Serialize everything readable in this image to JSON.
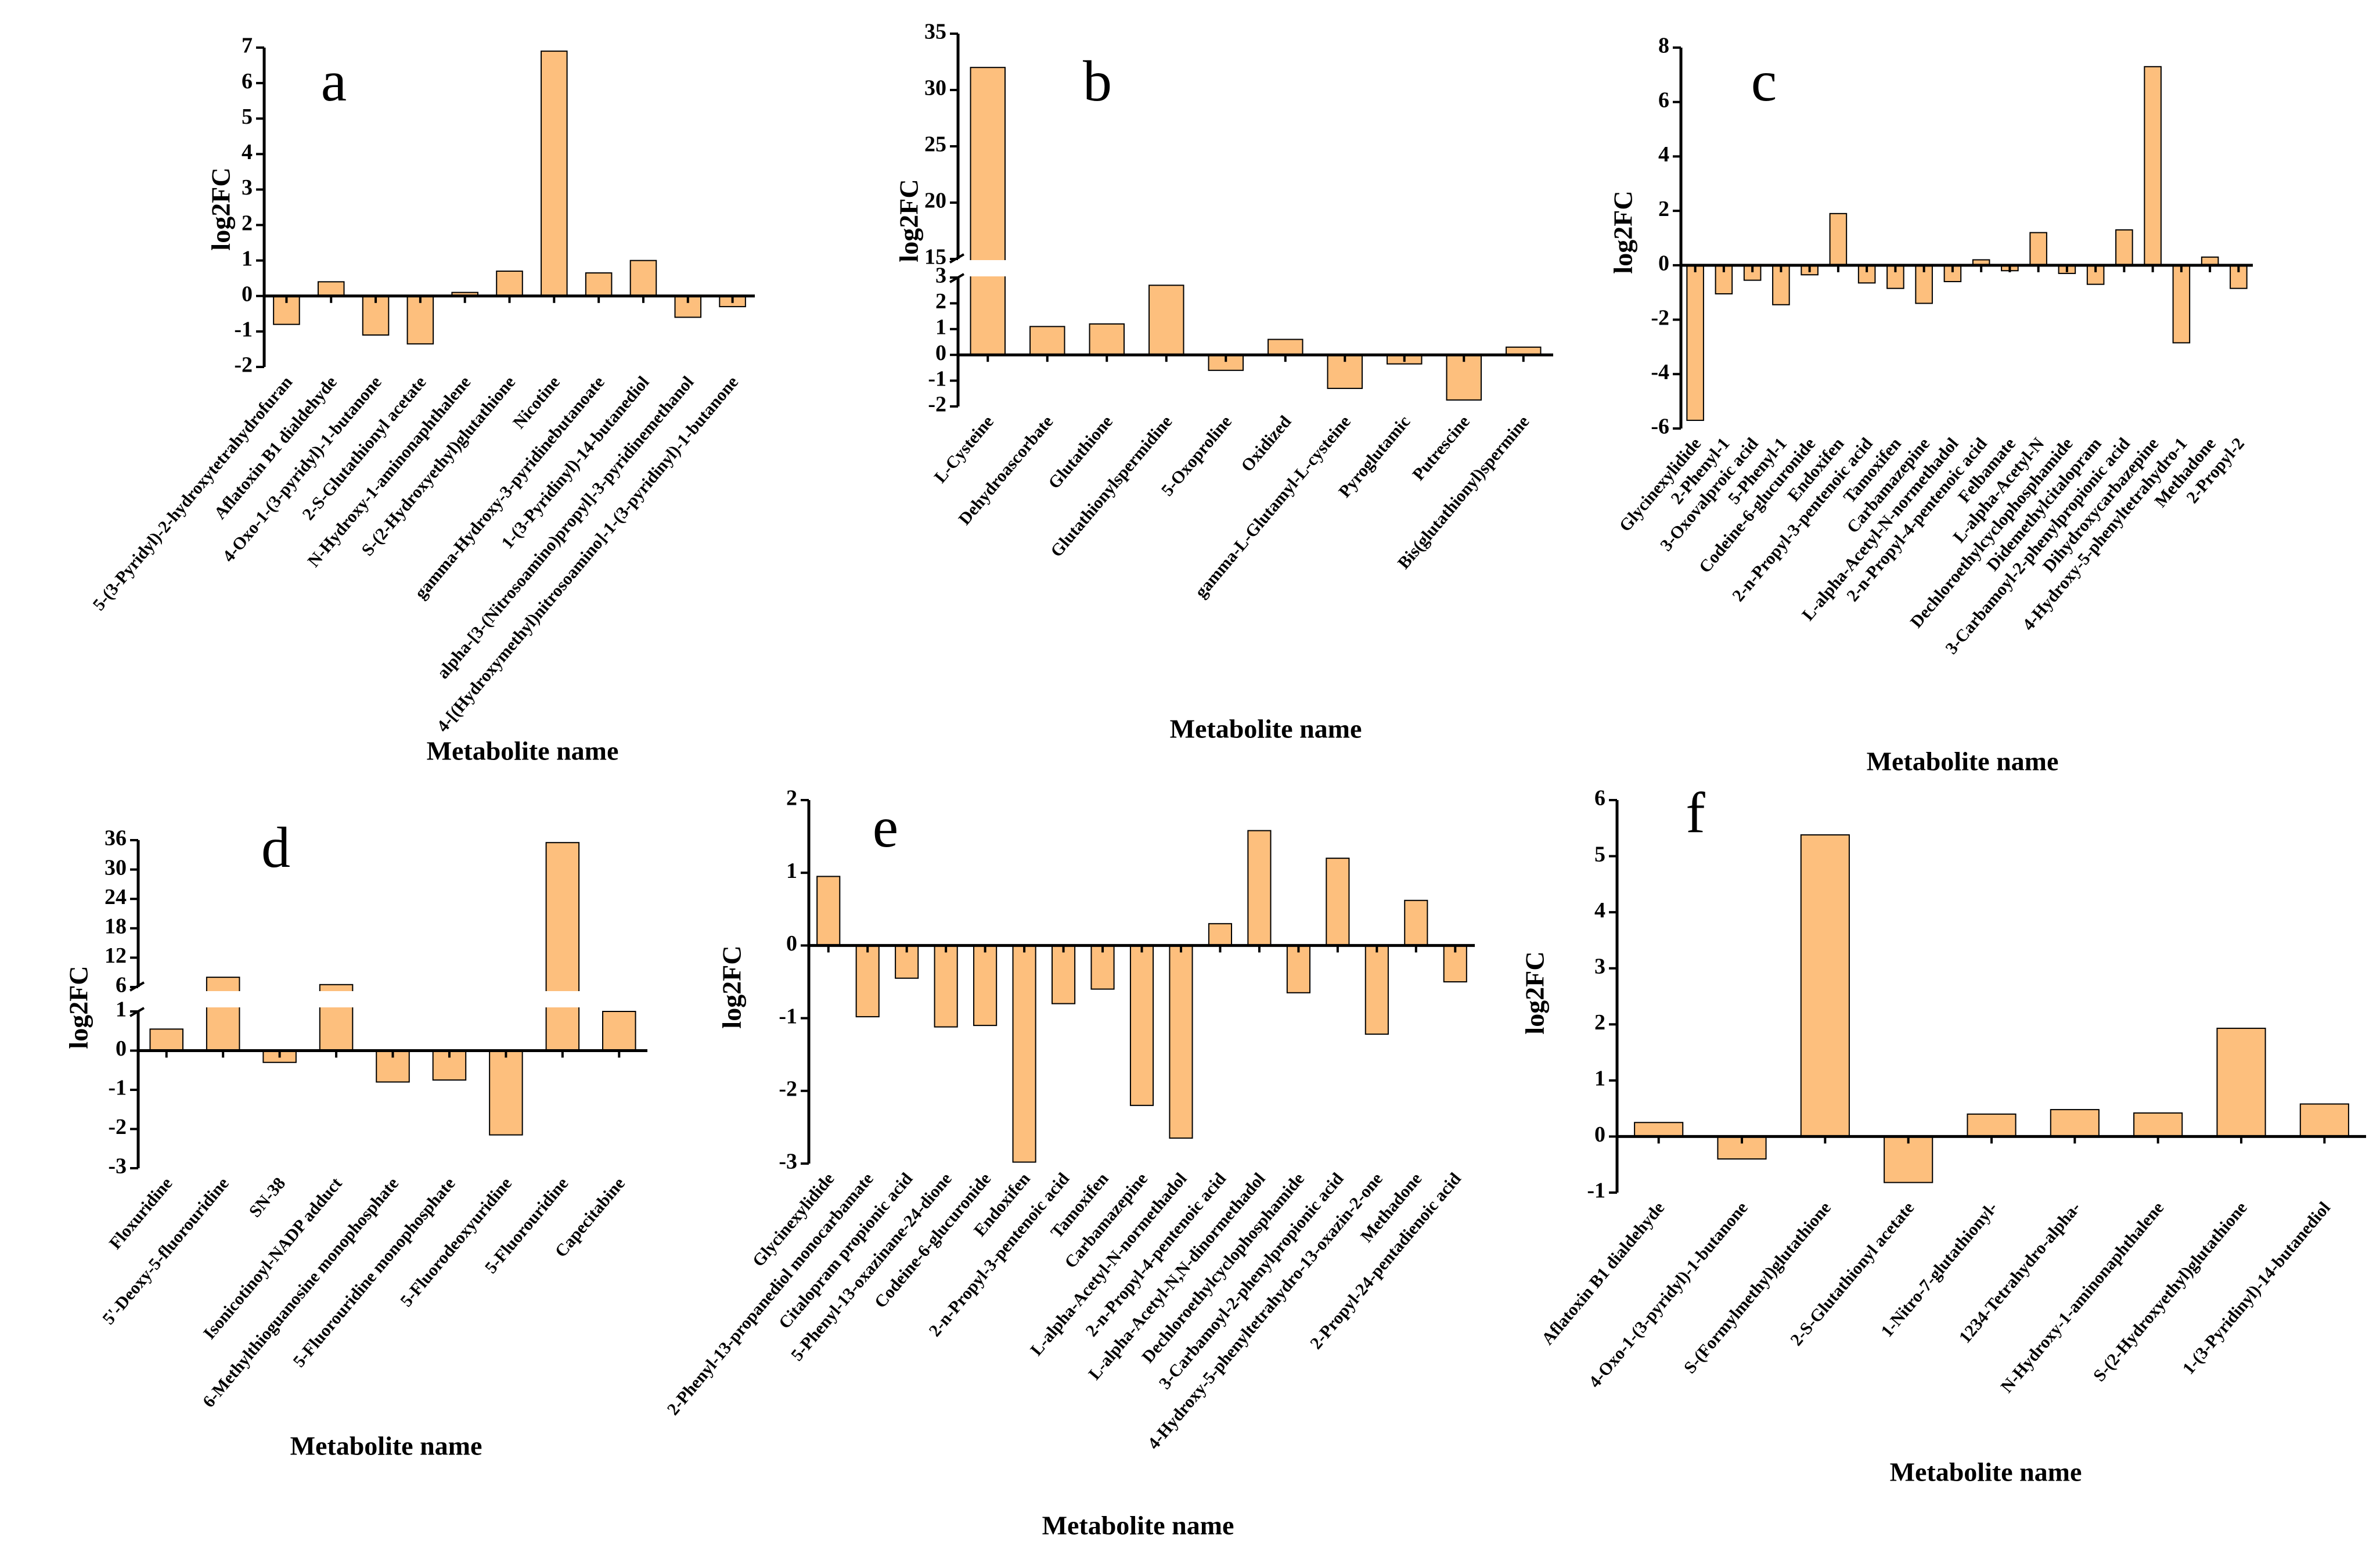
{
  "style": {
    "bar_fill": "#FDBF7D",
    "bar_stroke": "#000000",
    "axis_color": "#000000",
    "background": "#FFFFFF"
  },
  "chart_data": [
    {
      "type": "bar",
      "panel": "a",
      "ylabel": "log2FC",
      "xlabel": "Metabolite name",
      "ylim": [
        -2,
        7
      ],
      "y_ticks": [
        "-2",
        "-1",
        "0",
        "1",
        "2",
        "3",
        "4",
        "5",
        "6",
        "7"
      ],
      "categories": [
        "5-(3-Pyridyl)-2-hydroxytetrahydrofuran",
        "Aflatoxin B1 dialdehyde",
        "4-Oxo-1-(3-pyridyl)-1-butanone",
        "2-S-Glutathionyl acetate",
        "N-Hydroxy-1-aminonaphthalene",
        "S-(2-Hydroxyethyl)glutathione",
        "Nicotine",
        "gamma-Hydroxy-3-pyridinebutanoate",
        "1-(3-Pyridinyl)-14-butanediol",
        "alpha-[3-(Nitrosoamino)propyl]-3-pyridinemethanol",
        "4-[(Hydroxymethyl)nitrosoamino]-1-(3-pyridinyl)-1-butanone"
      ],
      "values": [
        -0.8,
        0.4,
        -1.1,
        -1.35,
        0.1,
        0.7,
        6.9,
        0.65,
        1.0,
        -0.6,
        -0.3
      ]
    },
    {
      "type": "bar",
      "panel": "b",
      "ylabel": "log2FC",
      "xlabel": "Metabolite name",
      "ylim": [
        -2,
        35
      ],
      "axis_break": [
        3,
        15
      ],
      "y_ticks": [
        "-2",
        "-1",
        "0",
        "1",
        "2",
        "3",
        "15",
        "20",
        "25",
        "30",
        "35"
      ],
      "categories": [
        "L-Cysteine",
        "Dehydroascorbate",
        "Glutathione",
        "Glutathionylspermidine",
        "5-Oxoproline",
        "Oxidized",
        "gamma-L-Glutamyl-L-cysteine",
        "Pyroglutamic",
        "Putrescine",
        "Bis(glutathionyl)spermine"
      ],
      "values": [
        32,
        1.1,
        1.2,
        2.7,
        -0.6,
        0.6,
        -1.3,
        -0.35,
        -1.75,
        0.3
      ]
    },
    {
      "type": "bar",
      "panel": "c",
      "ylabel": "log2FC",
      "xlabel": "Metabolite name",
      "ylim": [
        -6,
        8
      ],
      "y_ticks": [
        "-6",
        "-4",
        "-2",
        "0",
        "2",
        "4",
        "6",
        "8"
      ],
      "categories": [
        "Glycinexylidide",
        "2-Phenyl-1",
        "3-Oxovalproic acid",
        "5-Phenyl-1",
        "Codeine-6-glucuronide",
        "Endoxifen",
        "2-n-Propyl-3-pentenoic acid",
        "Tamoxifen",
        "Carbamazepine",
        "L-alpha-Acetyl-N-normethadol",
        "2-n-Propyl-4-pentenoic acid",
        "Felbamate",
        "L-alpha-Acetyl-N",
        "Dechloroethylcyclophosphamide",
        "Didemethylcitalopram",
        "3-Carbamoyl-2-phenylpropionic acid",
        "Dihydroxycarbazepine",
        "4-Hydroxy-5-phenyltetrahydro-1",
        "Methadone",
        "2-Propyl-2"
      ],
      "values": [
        -5.7,
        -1.05,
        -0.55,
        -1.45,
        -0.35,
        1.9,
        -0.65,
        -0.85,
        -1.4,
        -0.6,
        0.2,
        -0.2,
        1.2,
        -0.3,
        -0.7,
        1.3,
        7.3,
        -2.85,
        0.3,
        -0.85
      ]
    },
    {
      "type": "bar",
      "panel": "d",
      "ylabel": "log2FC",
      "xlabel": "Metabolite name",
      "ylim": [
        -3,
        36
      ],
      "axis_break": [
        1,
        6
      ],
      "y_ticks": [
        "-3",
        "-2",
        "-1",
        "0",
        "1",
        "6",
        "12",
        "18",
        "24",
        "30",
        "36"
      ],
      "categories": [
        "Floxuridine",
        "5'-Deoxy-5-fluorouridine",
        "SN-38",
        "Isonicotinoyl-NADP adduct",
        "6-Methylthioguanosine monophosphate",
        "5-Fluorouridine monophosphate",
        "5-Fluorodeoxyuridine",
        "5-Fluorouridine",
        "Capecitabine"
      ],
      "values": [
        0.55,
        8,
        -0.3,
        6.5,
        -0.8,
        -0.75,
        -2.15,
        35.5,
        1
      ]
    },
    {
      "type": "bar",
      "panel": "e",
      "ylabel": "log2FC",
      "xlabel": "Metabolite name",
      "ylim": [
        -3,
        2
      ],
      "y_ticks": [
        "-3",
        "-2",
        "-1",
        "0",
        "1",
        "2"
      ],
      "categories": [
        "Glycinexylidide",
        "2-Phenyl-13-propanediol monocarbamate",
        "Citalopram propionic acid",
        "5-Phenyl-13-oxazinane-24-dione",
        "Codeine-6-glucuronide",
        "Endoxifen",
        "2-n-Propyl-3-pentenoic acid",
        "Tamoxifen",
        "Carbamazepine",
        "L-alpha-Acetyl-N-normethadol",
        "2-n-Propyl-4-pentenoic acid",
        "L-alpha-Acetyl-N,N-dinormethadol",
        "Dechloroethylcyclophosphamide",
        "3-Carbamoyl-2-phenylpropionic acid",
        "4-Hydroxy-5-phenyltetrahydro-13-oxazin-2-one",
        "Methadone",
        "2-Propyl-24-pentadienoic acid"
      ],
      "values": [
        0.95,
        -0.98,
        -0.45,
        -1.12,
        -1.1,
        -2.98,
        -0.8,
        -0.6,
        -2.2,
        -2.65,
        0.3,
        1.58,
        -0.65,
        1.2,
        -1.22,
        0.62,
        -0.5
      ]
    },
    {
      "type": "bar",
      "panel": "f",
      "ylabel": "log2FC",
      "xlabel": "Metabolite name",
      "ylim": [
        -1,
        6
      ],
      "y_ticks": [
        "-1",
        "0",
        "1",
        "2",
        "3",
        "4",
        "5",
        "6"
      ],
      "categories": [
        "Aflatoxin B1 dialdehyde",
        "4-Oxo-1-(3-pyridyl)-1-butanone",
        "S-(Formylmethyl)glutathione",
        "2-S-Glutathionyl acetate",
        "1-Nitro-7-glutathionyl-",
        "1234-Tetrahydro-alpha-",
        "N-Hydroxy-1-aminonaphthalene",
        "S-(2-Hydroxyethyl)glutathione",
        "1-(3-Pyridinyl)-14-butanediol"
      ],
      "values": [
        0.25,
        -0.4,
        5.38,
        -0.82,
        0.4,
        0.48,
        0.42,
        1.93,
        0.58
      ]
    }
  ]
}
